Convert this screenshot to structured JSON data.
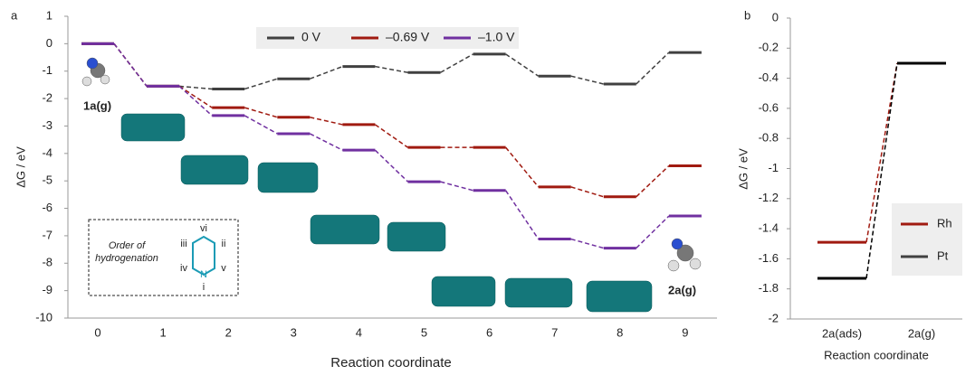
{
  "chart_data": [
    {
      "type": "step",
      "panel_label": "a",
      "x_label": "Reaction coordinate",
      "y_label": "ΔG / eV",
      "categories": [
        "0",
        "1",
        "2",
        "3",
        "4",
        "5",
        "6",
        "7",
        "8",
        "9"
      ],
      "series": [
        {
          "name": "0 V",
          "color": "#404040",
          "values": [
            0,
            -1.55,
            -1.65,
            -1.28,
            -0.83,
            -1.05,
            -0.38,
            -1.18,
            -1.47,
            -0.32
          ]
        },
        {
          "name": "–0.69 V",
          "color": "#a01a10",
          "values": [
            0,
            -1.55,
            -2.33,
            -2.68,
            -2.95,
            -3.78,
            -3.78,
            -5.22,
            -5.58,
            -4.45
          ]
        },
        {
          "name": "–1.0 V",
          "color": "#7030a0",
          "values": [
            0,
            -1.55,
            -2.62,
            -3.28,
            -3.88,
            -5.03,
            -5.35,
            -7.12,
            -7.45,
            -6.28
          ]
        }
      ],
      "ylim": [
        -10,
        1
      ],
      "yticks": [
        -10,
        -9,
        -8,
        -7,
        -6,
        -5,
        -4,
        -3,
        -2,
        -1,
        0,
        1
      ],
      "legend": "top",
      "annotations": {
        "start": "1a(g)",
        "end": "2a(g)",
        "order_title": "Order of",
        "order_subtitle": "hydrogenation",
        "ring_labels": [
          "i",
          "ii",
          "iii",
          "iv",
          "v",
          "vi"
        ],
        "atom": "N"
      }
    },
    {
      "type": "step",
      "panel_label": "b",
      "x_label": "Reaction coordinate",
      "y_label": "ΔG / eV",
      "categories": [
        "2a(ads)",
        "2a(g)"
      ],
      "series": [
        {
          "name": "Rh",
          "color": "#a01a10",
          "values": [
            -1.49,
            -0.3
          ]
        },
        {
          "name": "Pt",
          "color": "#000000",
          "values": [
            -1.73,
            -0.3
          ]
        }
      ],
      "ylim": [
        -2,
        0
      ],
      "yticks": [
        -2,
        -1.8,
        -1.6,
        -1.4,
        -1.2,
        -1,
        -0.8,
        -0.6,
        -0.4,
        -0.2,
        0
      ],
      "legend": "right"
    }
  ]
}
